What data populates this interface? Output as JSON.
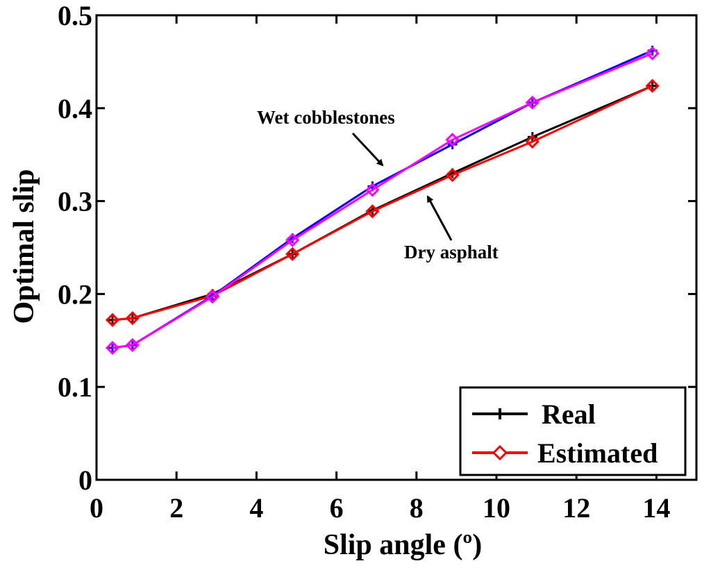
{
  "chart_data": {
    "type": "line",
    "xlabel": "Slip angle (º)",
    "ylabel": "Optimal slip",
    "xlim": [
      0,
      15
    ],
    "ylim": [
      0,
      0.5
    ],
    "xticks": [
      0,
      2,
      4,
      6,
      8,
      10,
      12,
      14
    ],
    "xtick_labels": [
      "0",
      "2",
      "4",
      "6",
      "8",
      "10",
      "12",
      "14"
    ],
    "yticks": [
      0,
      0.1,
      0.2,
      0.3,
      0.4,
      0.5
    ],
    "ytick_labels": [
      "0",
      "0.1",
      "0.2",
      "0.3",
      "0.4",
      "0.5"
    ],
    "grid": false,
    "x": [
      0.4,
      0.9,
      2.9,
      4.9,
      6.9,
      8.9,
      10.9,
      13.9
    ],
    "series": [
      {
        "name": "Real (Dry asphalt)",
        "legend": "Real",
        "color": "#000000",
        "marker": "plus",
        "values": [
          0.172,
          0.174,
          0.2,
          0.243,
          0.29,
          0.33,
          0.369,
          0.424
        ]
      },
      {
        "name": "Estimated (Dry asphalt)",
        "legend": "Estimated",
        "color": "#ff0000",
        "marker": "diamond",
        "values": [
          0.172,
          0.174,
          0.198,
          0.243,
          0.289,
          0.328,
          0.364,
          0.424
        ]
      },
      {
        "name": "Real (Wet cobblestones)",
        "legend": "Real",
        "color": "#0000ff",
        "marker": "plus",
        "values": [
          0.142,
          0.145,
          0.198,
          0.26,
          0.316,
          0.361,
          0.406,
          0.462
        ]
      },
      {
        "name": "Estimated (Wet cobblestones)",
        "legend": "Estimated",
        "color": "#ff00ff",
        "marker": "diamond",
        "values": [
          0.142,
          0.145,
          0.197,
          0.258,
          0.312,
          0.366,
          0.406,
          0.459
        ]
      }
    ],
    "legend": {
      "position": "bottom-right",
      "entries": [
        {
          "label": "Real",
          "color": "#000000",
          "marker": "plus"
        },
        {
          "label": "Estimated",
          "color": "#ff0000",
          "marker": "diamond"
        }
      ]
    },
    "annotations": [
      {
        "text": "Wet cobblestones",
        "arrow_to": [
          7.2,
          0.338
        ]
      },
      {
        "text": "Dry asphalt",
        "arrow_to": [
          7.9,
          0.306
        ]
      }
    ]
  }
}
